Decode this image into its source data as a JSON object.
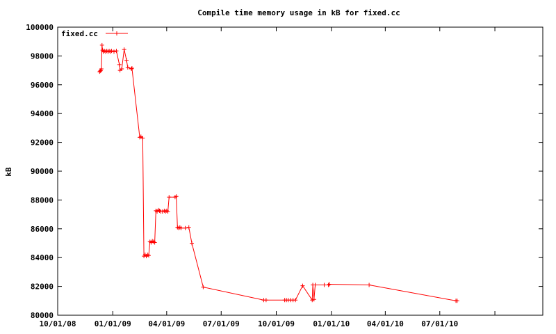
{
  "chart_data": {
    "type": "line",
    "title": "Compile time memory usage in kB for fixed.cc",
    "ylabel": "kB",
    "xlabel": "",
    "ylim": [
      80000,
      100000
    ],
    "xlim": [
      "2008-10-01",
      "2010-12-20"
    ],
    "y_ticks": [
      "80000",
      "82000",
      "84000",
      "86000",
      "88000",
      "90000",
      "92000",
      "94000",
      "96000",
      "98000",
      "100000"
    ],
    "x_ticks": [
      {
        "label": "10/01/08",
        "date": "2008-10-01"
      },
      {
        "label": "01/01/09",
        "date": "2009-01-01"
      },
      {
        "label": "04/01/09",
        "date": "2009-04-01"
      },
      {
        "label": "07/01/09",
        "date": "2009-07-01"
      },
      {
        "label": "10/01/09",
        "date": "2009-10-01"
      },
      {
        "label": "01/01/10",
        "date": "2010-01-01"
      },
      {
        "label": "04/01/10",
        "date": "2010-04-01"
      },
      {
        "label": "07/01/10",
        "date": "2010-07-01"
      }
    ],
    "grid": false,
    "legend": "top-left",
    "series": [
      {
        "name": "fixed.cc",
        "color": "#ff0000",
        "marker": "+",
        "points": [
          [
            "2008-12-10",
            96900
          ],
          [
            "2008-12-11",
            96950
          ],
          [
            "2008-12-12",
            97000
          ],
          [
            "2008-12-13",
            97100
          ],
          [
            "2008-12-14",
            98750
          ],
          [
            "2008-12-15",
            98400
          ],
          [
            "2008-12-16",
            98300
          ],
          [
            "2008-12-18",
            98350
          ],
          [
            "2008-12-20",
            98300
          ],
          [
            "2008-12-22",
            98350
          ],
          [
            "2008-12-24",
            98300
          ],
          [
            "2008-12-26",
            98350
          ],
          [
            "2008-12-28",
            98300
          ],
          [
            "2008-12-30",
            98350
          ],
          [
            "2009-01-03",
            98300
          ],
          [
            "2009-01-07",
            98350
          ],
          [
            "2009-01-12",
            97400
          ],
          [
            "2009-01-13",
            97000
          ],
          [
            "2009-01-16",
            97100
          ],
          [
            "2009-01-20",
            98450
          ],
          [
            "2009-01-24",
            97700
          ],
          [
            "2009-01-26",
            97200
          ],
          [
            "2009-02-01",
            97100
          ],
          [
            "2009-02-02",
            97150
          ],
          [
            "2009-02-15",
            92350
          ],
          [
            "2009-02-17",
            92400
          ],
          [
            "2009-02-20",
            92300
          ],
          [
            "2009-02-22",
            84100
          ],
          [
            "2009-02-24",
            84200
          ],
          [
            "2009-02-26",
            84100
          ],
          [
            "2009-02-28",
            84200
          ],
          [
            "2009-03-02",
            84150
          ],
          [
            "2009-03-04",
            85100
          ],
          [
            "2009-03-06",
            85050
          ],
          [
            "2009-03-08",
            85150
          ],
          [
            "2009-03-10",
            85100
          ],
          [
            "2009-03-12",
            85050
          ],
          [
            "2009-03-14",
            87250
          ],
          [
            "2009-03-16",
            87200
          ],
          [
            "2009-03-18",
            87300
          ],
          [
            "2009-03-20",
            87250
          ],
          [
            "2009-03-22",
            87200
          ],
          [
            "2009-03-25",
            87200
          ],
          [
            "2009-03-28",
            87250
          ],
          [
            "2009-03-30",
            87200
          ],
          [
            "2009-04-01",
            87250
          ],
          [
            "2009-04-03",
            87200
          ],
          [
            "2009-04-05",
            88200
          ],
          [
            "2009-04-15",
            88200
          ],
          [
            "2009-04-17",
            88250
          ],
          [
            "2009-04-19",
            86100
          ],
          [
            "2009-04-21",
            86050
          ],
          [
            "2009-04-23",
            86100
          ],
          [
            "2009-04-25",
            86050
          ],
          [
            "2009-05-02",
            86050
          ],
          [
            "2009-05-08",
            86100
          ],
          [
            "2009-05-13",
            85000
          ],
          [
            "2009-06-01",
            81950
          ],
          [
            "2009-09-10",
            81050
          ],
          [
            "2009-09-14",
            81050
          ],
          [
            "2009-10-15",
            81050
          ],
          [
            "2009-10-18",
            81050
          ],
          [
            "2009-10-21",
            81050
          ],
          [
            "2009-10-25",
            81050
          ],
          [
            "2009-10-29",
            81050
          ],
          [
            "2009-11-02",
            81050
          ],
          [
            "2009-11-14",
            82050
          ],
          [
            "2009-11-30",
            81050
          ],
          [
            "2009-12-01",
            82100
          ],
          [
            "2009-12-03",
            81100
          ],
          [
            "2009-12-05",
            82100
          ],
          [
            "2009-12-20",
            82100
          ],
          [
            "2009-12-27",
            82100
          ],
          [
            "2009-12-29",
            82150
          ],
          [
            "2010-03-05",
            82100
          ],
          [
            "2010-07-28",
            81000
          ],
          [
            "2010-07-30",
            81000
          ]
        ]
      }
    ]
  }
}
